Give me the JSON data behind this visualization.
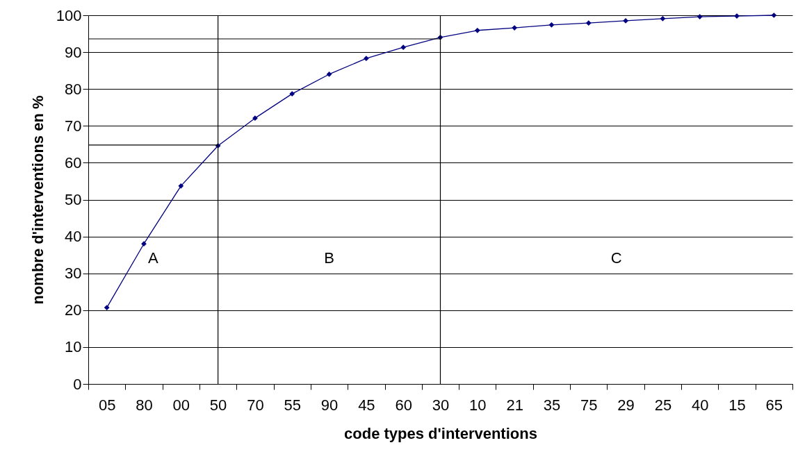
{
  "chart_data": {
    "type": "line",
    "xlabel": "code types d'interventions",
    "ylabel": "nombre d'interventions en %",
    "categories": [
      "05",
      "80",
      "00",
      "50",
      "70",
      "55",
      "90",
      "45",
      "60",
      "30",
      "10",
      "21",
      "35",
      "75",
      "29",
      "25",
      "40",
      "15",
      "65"
    ],
    "series": [
      {
        "color": "#000080",
        "values": [
          20.7,
          38.0,
          53.7,
          64.6,
          72.1,
          78.7,
          84.0,
          88.3,
          91.3,
          94.0,
          95.9,
          96.6,
          97.4,
          97.9,
          98.5,
          99.1,
          99.6,
          99.8,
          100
        ]
      }
    ],
    "ylim": [
      0,
      100
    ],
    "yticks": [
      0,
      10,
      20,
      30,
      40,
      50,
      60,
      70,
      80,
      90,
      100
    ],
    "grid": "y",
    "marker": "diamond",
    "line_style": "solid",
    "ref_lines": [
      {
        "axis": "x",
        "value": "50",
        "color": "#000000"
      },
      {
        "axis": "x",
        "value": "30",
        "color": "#000000"
      },
      {
        "axis": "y",
        "value": 64.8,
        "color": "#000000"
      },
      {
        "axis": "y",
        "value": 93.6,
        "color": "#000000"
      }
    ],
    "annotations": [
      "A",
      "B",
      "C"
    ]
  }
}
